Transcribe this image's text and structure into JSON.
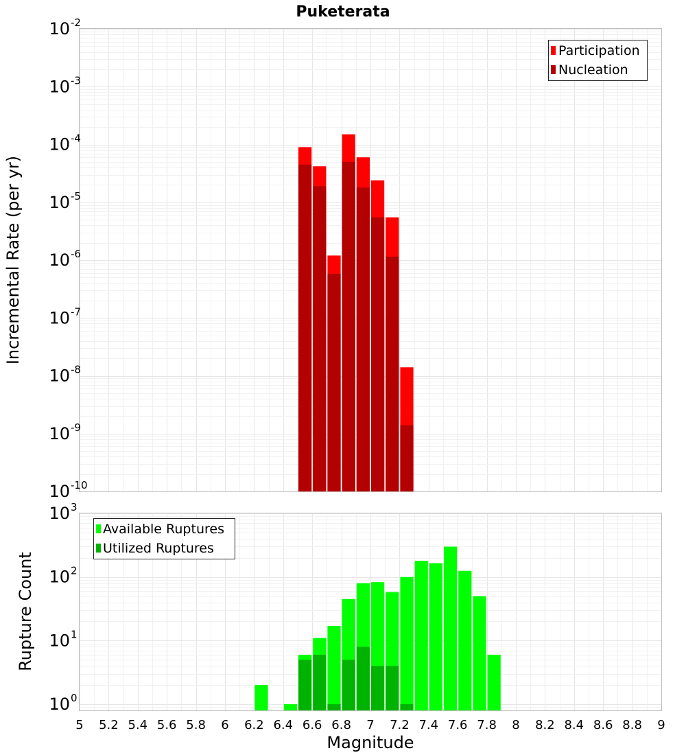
{
  "colors": {
    "participation": "#ff0000",
    "nucleation": "#b30000",
    "available": "#00ff00",
    "utilized": "#00b300"
  },
  "chart_data": [
    {
      "type": "bar",
      "title": "Puketerata",
      "xlabel": "",
      "ylabel": "Incremental Rate (per yr)",
      "yscale": "log",
      "ylim": [
        1e-10,
        0.01
      ],
      "xlim": [
        5,
        9
      ],
      "ytick_exponents": [
        "-2",
        "-3",
        "-4",
        "-5",
        "-6",
        "-7",
        "-8",
        "-9",
        "-10"
      ],
      "ytick_base": "10",
      "bin_width": 0.1,
      "legend": {
        "position": "top-right",
        "entries": [
          "Participation",
          "Nucleation"
        ]
      },
      "series": [
        {
          "name": "Participation",
          "x": [
            6.55,
            6.65,
            6.75,
            6.85,
            6.95,
            7.05,
            7.15,
            7.25
          ],
          "values": [
            9e-05,
            4.2e-05,
            1.2e-06,
            0.00015,
            6e-05,
            2.4e-05,
            5.5e-06,
            1.4e-08
          ]
        },
        {
          "name": "Nucleation",
          "x": [
            6.55,
            6.65,
            6.75,
            6.85,
            6.95,
            7.05,
            7.15,
            7.25
          ],
          "values": [
            4.5e-05,
            1.9e-05,
            5.8e-07,
            5e-05,
            1.8e-05,
            5.5e-06,
            1.15e-06,
            1.4e-09
          ]
        }
      ]
    },
    {
      "type": "bar",
      "title": "",
      "xlabel": "Magnitude",
      "ylabel": "Rupture Count",
      "yscale": "log",
      "ylim": [
        0.8,
        1000
      ],
      "xlim": [
        5,
        9
      ],
      "ytick_exponents": [
        "3",
        "2",
        "1",
        "0"
      ],
      "ytick_base": "10",
      "xticks": [
        "5",
        "5.2",
        "5.4",
        "5.6",
        "5.8",
        "6",
        "6.2",
        "6.4",
        "6.6",
        "6.8",
        "7",
        "7.2",
        "7.4",
        "7.6",
        "7.8",
        "8",
        "8.2",
        "8.4",
        "8.6",
        "8.8",
        "9"
      ],
      "bin_width": 0.1,
      "legend": {
        "position": "top-left",
        "entries": [
          "Available Ruptures",
          "Utilized Ruptures"
        ]
      },
      "series": [
        {
          "name": "Available Ruptures",
          "x": [
            6.25,
            6.45,
            6.55,
            6.65,
            6.75,
            6.85,
            6.95,
            7.05,
            7.15,
            7.25,
            7.35,
            7.45,
            7.55,
            7.65,
            7.75,
            7.85
          ],
          "values": [
            2,
            1,
            6,
            11,
            17,
            45,
            80,
            83,
            58,
            100,
            180,
            165,
            300,
            125,
            50,
            6
          ]
        },
        {
          "name": "Utilized Ruptures",
          "x": [
            6.55,
            6.65,
            6.75,
            6.85,
            6.95,
            7.05,
            7.15,
            7.25
          ],
          "values": [
            5,
            6,
            1,
            5,
            8,
            4,
            4,
            1
          ]
        }
      ]
    }
  ]
}
